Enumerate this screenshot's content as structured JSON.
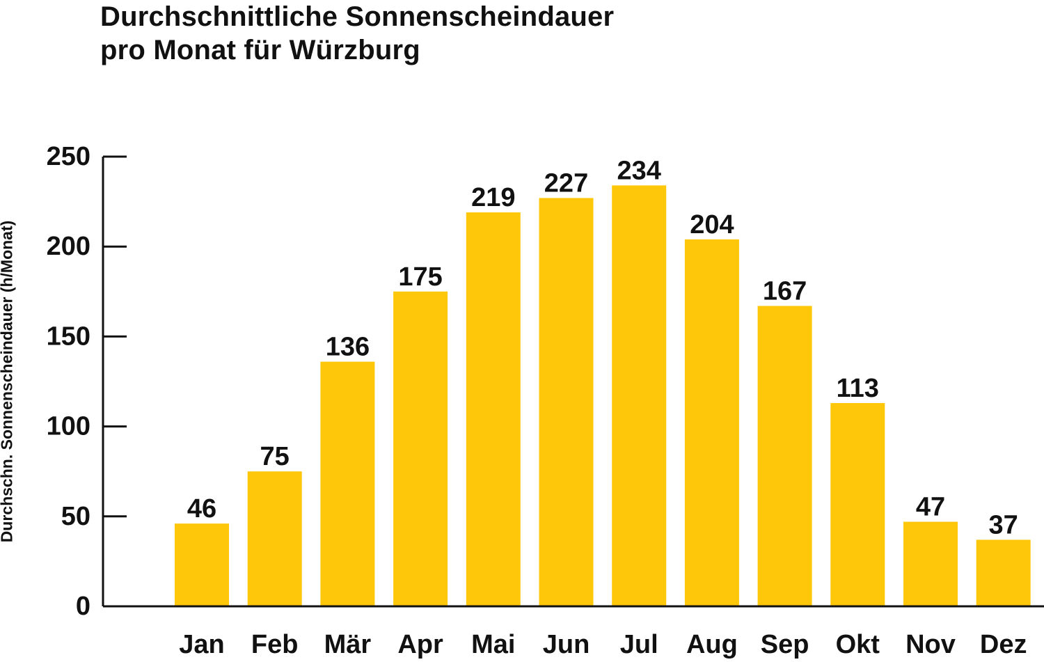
{
  "title_line1": "Durchschnittliche Sonnenscheindauer",
  "title_line2": "pro Monat für Würzburg",
  "chart_data": {
    "type": "bar",
    "title": "Durchschnittliche Sonnenscheindauer pro Monat für Würzburg",
    "xlabel": "",
    "ylabel": "Durchschn. Sonnenscheindauer (h/Monat)",
    "categories": [
      "Jan",
      "Feb",
      "Mär",
      "Apr",
      "Mai",
      "Jun",
      "Jul",
      "Aug",
      "Sep",
      "Okt",
      "Nov",
      "Dez"
    ],
    "values": [
      46,
      75,
      136,
      175,
      219,
      227,
      234,
      204,
      167,
      113,
      47,
      37
    ],
    "ylim": [
      0,
      250
    ],
    "yticks": [
      0,
      50,
      100,
      150,
      200,
      250
    ],
    "grid": false,
    "legend": "none",
    "bar_color": "#FEC70A",
    "axis_color": "#111111"
  }
}
